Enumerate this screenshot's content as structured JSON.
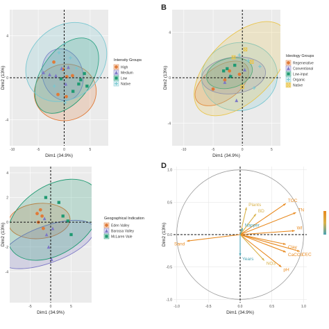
{
  "panel_labels": {
    "b": "B",
    "d": "D"
  },
  "colors": {
    "panel_bg": "#ebebeb",
    "grid": "#ffffff",
    "intensity": [
      "#e07b39",
      "#7c78c6",
      "#1f9a72",
      "#79c7d1"
    ],
    "ideology": [
      "#e07b39",
      "#7c78c6",
      "#1f9a72",
      "#79c7d1",
      "#e9c44a"
    ],
    "geo": [
      "#e07b39",
      "#7c78c6",
      "#1f9a72"
    ],
    "vectors": {
      "soil": "#e8891e",
      "biology": "#d9b24a",
      "misc": "#4aa3b3"
    }
  },
  "chart_data": [
    {
      "id": "A",
      "type": "scatter",
      "title": "",
      "xlabel": "Dim1 (34.9%)",
      "ylabel": "Dim2 (13%)",
      "xlim": [
        -10.5,
        8.5
      ],
      "ylim": [
        -6.5,
        6.5
      ],
      "xticks": [
        -10,
        -5,
        0,
        5
      ],
      "yticks": [
        -4,
        0,
        4
      ],
      "legend": {
        "title": "Intensity Groups",
        "position": "right"
      },
      "series": [
        {
          "name": "High",
          "marker": "circle",
          "points": [
            [
              -2,
              1.5
            ],
            [
              -1.2,
              -1.6
            ],
            [
              -0.2,
              0.8
            ],
            [
              0.4,
              -1.8
            ],
            [
              1.6,
              0.2
            ],
            [
              0.5,
              0.1
            ]
          ],
          "ellipse": {
            "cx": 0.2,
            "cy": -1.4,
            "rx": 6.0,
            "ry": 2.7,
            "angle": 10
          }
        },
        {
          "name": "Medium",
          "marker": "triangle",
          "points": [
            [
              -4,
              0.5
            ],
            [
              -1.6,
              0.2
            ],
            [
              0.3,
              -0.6
            ],
            [
              -0.5,
              0.9
            ],
            [
              -2.8,
              0.3
            ],
            [
              0.8,
              1.0
            ]
          ],
          "ellipse": {
            "cx": -0.3,
            "cy": 0.3,
            "rx": 3.9,
            "ry": 2.5,
            "angle": 15
          }
        },
        {
          "name": "Low",
          "marker": "square",
          "points": [
            [
              2.8,
              -0.6
            ],
            [
              3.9,
              0.4
            ],
            [
              3.2,
              -0.2
            ],
            [
              1.7,
              -1.3
            ],
            [
              -0.6,
              -0.1
            ],
            [
              4.4,
              -0.8
            ]
          ],
          "ellipse": {
            "cx": 0.5,
            "cy": 0.2,
            "rx": 8.2,
            "ry": 2.4,
            "angle": 55
          }
        },
        {
          "name": "Native",
          "marker": "plus",
          "points": [
            [
              -1,
              2.4
            ],
            [
              1.2,
              1.9
            ],
            [
              0,
              3.2
            ],
            [
              2.4,
              0.9
            ],
            [
              -1.9,
              -0.8
            ],
            [
              0.2,
              -2.4
            ]
          ],
          "ellipse": {
            "cx": 0.4,
            "cy": 1.5,
            "rx": 8.5,
            "ry": 3.4,
            "angle": 42
          }
        }
      ]
    },
    {
      "id": "B",
      "type": "scatter",
      "title": "",
      "xlabel": "Dim1 (34.9%)",
      "ylabel": "Dim2 (13%)",
      "xlim": [
        -12,
        6.5
      ],
      "ylim": [
        -6,
        6
      ],
      "xticks": [
        -10,
        -5,
        0,
        5
      ],
      "yticks": [
        -4,
        0,
        4
      ],
      "legend": {
        "title": "Ideology Groups",
        "position": "right"
      },
      "series": [
        {
          "name": "Regenerative",
          "marker": "circle",
          "points": [
            [
              -5,
              -1
            ],
            [
              -3,
              -0.2
            ],
            [
              -2.2,
              0.6
            ],
            [
              -0.5,
              0.3
            ]
          ],
          "ellipse": {
            "cx": -3.5,
            "cy": -0.5,
            "rx": 5.2,
            "ry": 1.5,
            "angle": 35
          }
        },
        {
          "name": "Conventional",
          "marker": "triangle",
          "points": [
            [
              -1,
              -2
            ],
            [
              -2.1,
              0.2
            ],
            [
              0.4,
              0.7
            ],
            [
              -3,
              -0.4
            ]
          ],
          "ellipse": {
            "cx": -1.5,
            "cy": 0.2,
            "rx": 5.5,
            "ry": 1.6,
            "angle": 8
          }
        },
        {
          "name": "Low-input",
          "marker": "square",
          "points": [
            [
              -2.6,
              0.8
            ],
            [
              -2,
              0.1
            ],
            [
              -1.3,
              1.1
            ],
            [
              -3.2,
              0.6
            ]
          ],
          "ellipse": {
            "cx": -2.2,
            "cy": 0.4,
            "rx": 4.0,
            "ry": 1.3,
            "angle": 15
          }
        },
        {
          "name": "Organic",
          "marker": "plus",
          "points": [
            [
              1,
              1.5
            ],
            [
              2,
              -0.9
            ],
            [
              -0.5,
              2
            ],
            [
              3,
              1
            ]
          ],
          "ellipse": {
            "cx": -0.5,
            "cy": 0.1,
            "rx": 6.5,
            "ry": 3.0,
            "angle": 10
          }
        },
        {
          "name": "Native",
          "marker": "square-cross",
          "points": [
            [
              0.5,
              2.5
            ],
            [
              -1.5,
              1.8
            ],
            [
              0,
              -0.8
            ],
            [
              1.6,
              1.4
            ]
          ],
          "ellipse": {
            "cx": -0.2,
            "cy": 0.8,
            "rx": 10.0,
            "ry": 2.8,
            "angle": 45
          }
        }
      ]
    },
    {
      "id": "C",
      "type": "scatter",
      "title": "",
      "xlabel": "Dim1 (34.9%)",
      "ylabel": "Dim2 (13%)",
      "xlim": [
        -10,
        10
      ],
      "ylim": [
        -6.5,
        4.5
      ],
      "xticks": [
        -5,
        0,
        5
      ],
      "yticks": [
        -4,
        -2,
        0,
        2,
        4
      ],
      "legend": {
        "title": "Geographical Indication",
        "position": "right"
      },
      "series": [
        {
          "name": "Eden Valley",
          "marker": "circle",
          "points": [
            [
              -2.5,
              1
            ],
            [
              -3,
              0
            ],
            [
              -1.8,
              -0.5
            ],
            [
              -2.1,
              0.5
            ],
            [
              -3.3,
              0.7
            ]
          ],
          "ellipse": {
            "cx": -2.8,
            "cy": 0.1,
            "rx": 4.3,
            "ry": 2.5,
            "angle": -85
          }
        },
        {
          "name": "Barossa Valley",
          "marker": "triangle",
          "points": [
            [
              -1,
              -1
            ],
            [
              0.5,
              -0.5
            ],
            [
              -0.5,
              -2
            ],
            [
              -1.5,
              0.3
            ],
            [
              0.2,
              -3
            ]
          ],
          "ellipse": {
            "cx": -0.8,
            "cy": -1.8,
            "rx": 4.5,
            "ry": 4.0,
            "angle": -70
          }
        },
        {
          "name": "McLaren Vale",
          "marker": "square",
          "points": [
            [
              2,
              1.6
            ],
            [
              5,
              -1
            ],
            [
              3,
              0.5
            ],
            [
              -1.2,
              2
            ],
            [
              4.2,
              0.1
            ]
          ],
          "ellipse": {
            "cx": 0.8,
            "cy": 0.2,
            "rx": 8.2,
            "ry": 4.2,
            "angle": -55
          }
        }
      ]
    },
    {
      "id": "D",
      "type": "correlation_circle",
      "title": "",
      "xlabel": "Dim1 (34.9%)",
      "ylabel": "Dim2 (13%)",
      "xlim": [
        -1.05,
        1.05
      ],
      "ylim": [
        -1.05,
        1.05
      ],
      "xticks": [
        -1.0,
        -0.5,
        0.0,
        0.5,
        1.0
      ],
      "yticks": [
        -1.0,
        -0.5,
        0.0,
        0.5,
        1.0
      ],
      "vectors": [
        {
          "name": "Plants",
          "x": 0.1,
          "y": 0.42,
          "group": "biology"
        },
        {
          "name": "BD",
          "x": 0.25,
          "y": 0.32,
          "group": "biology"
        },
        {
          "name": "TOC",
          "x": 0.72,
          "y": 0.48,
          "group": "soil"
        },
        {
          "name": "TN",
          "x": 0.88,
          "y": 0.34,
          "group": "soil"
        },
        {
          "name": "WI",
          "x": 0.86,
          "y": 0.06,
          "group": "soil"
        },
        {
          "name": "Clay",
          "x": 0.72,
          "y": -0.15,
          "group": "soil"
        },
        {
          "name": "CEC",
          "x": 0.94,
          "y": -0.26,
          "group": "soil"
        },
        {
          "name": "CaCO3",
          "x": 0.72,
          "y": -0.27,
          "group": "soil"
        },
        {
          "name": "pH",
          "x": 0.65,
          "y": -0.5,
          "group": "soil"
        },
        {
          "name": "Sand",
          "x": -0.84,
          "y": -0.1,
          "group": "soil"
        },
        {
          "name": "Napper",
          "x": 0.04,
          "y": 0.1,
          "group": "misc"
        },
        {
          "name": "Years",
          "x": 0.0,
          "y": -0.33,
          "group": "misc"
        },
        {
          "name": "NO3",
          "x": 0.38,
          "y": -0.4,
          "group": "biology"
        }
      ]
    }
  ]
}
